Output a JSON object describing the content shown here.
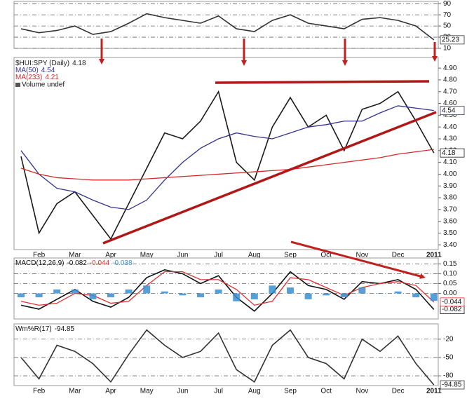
{
  "chart_data": [
    {
      "type": "line",
      "ylim": [
        10,
        94
      ],
      "yticks": [
        90,
        70,
        50,
        30,
        10
      ],
      "grid": true,
      "series": [
        {
          "color": "#333333",
          "right_tag": true,
          "values": [
            45,
            38,
            42,
            50,
            35,
            40,
            55,
            72,
            65,
            60,
            55,
            68,
            45,
            40,
            60,
            70,
            55,
            50,
            45,
            62,
            65,
            60,
            50,
            25.23
          ]
        }
      ]
    },
    {
      "type": "line",
      "grid": false,
      "volume_label": "Volume undef",
      "categories": [
        null,
        "Feb",
        null,
        "Mar",
        null,
        "Apr",
        null,
        "May",
        null,
        "Jun",
        null,
        "Jul",
        null,
        "Aug",
        null,
        "Sep",
        null,
        "Oct",
        null,
        "Nov",
        null,
        "Dec",
        null,
        "2011"
      ],
      "ylim": [
        3.36,
        4.99
      ],
      "yticks": [
        {
          "value": 4.9,
          "label": "4.90"
        },
        {
          "value": 4.8,
          "label": "4.80"
        },
        {
          "value": 4.7,
          "label": "4.70"
        },
        {
          "value": 4.6,
          "label": "4.60"
        },
        {
          "value": 4.5,
          "label": "4.50"
        },
        {
          "value": 4.4,
          "label": "4.40"
        },
        {
          "value": 4.3,
          "label": "4.30"
        },
        {
          "value": 4.2,
          "label": "4.20"
        },
        {
          "value": 4.1,
          "label": "4.10"
        },
        {
          "value": 4.0,
          "label": "4.00"
        },
        {
          "value": 3.9,
          "label": "3.90"
        },
        {
          "value": 3.8,
          "label": "3.80"
        },
        {
          "value": 3.7,
          "label": "3.70"
        },
        {
          "value": 3.6,
          "label": "3.60"
        },
        {
          "value": 3.5,
          "label": "3.50"
        },
        {
          "value": 3.4,
          "label": "3.40"
        }
      ],
      "series": [
        {
          "name": "$HUI:SPY (Daily)",
          "color": "#1a1a1a",
          "right_tag": true,
          "values": [
            4.15,
            3.5,
            3.75,
            3.85,
            3.65,
            3.45,
            3.75,
            4.05,
            4.35,
            4.3,
            4.45,
            4.7,
            4.1,
            3.95,
            4.4,
            4.65,
            4.4,
            4.5,
            4.2,
            4.55,
            4.6,
            4.7,
            4.45,
            4.18
          ]
        },
        {
          "name": "MA(50)",
          "color": "#33338f",
          "right_tag": true,
          "values": [
            4.2,
            4.0,
            3.88,
            3.85,
            3.78,
            3.72,
            3.7,
            3.78,
            3.95,
            4.1,
            4.22,
            4.3,
            4.35,
            4.32,
            4.3,
            4.35,
            4.4,
            4.42,
            4.45,
            4.45,
            4.52,
            4.58,
            4.56,
            4.54
          ]
        },
        {
          "name": "MA(233)",
          "color": "#d42a2a",
          "right_tag": false,
          "values": [
            4.05,
            4.0,
            3.97,
            3.96,
            3.95,
            3.95,
            3.95,
            3.96,
            3.97,
            3.98,
            3.99,
            4.0,
            4.01,
            4.02,
            4.03,
            4.04,
            4.06,
            4.08,
            4.1,
            4.12,
            4.14,
            4.17,
            4.19,
            4.21
          ]
        }
      ]
    },
    {
      "type": "line",
      "title": "MACD(12,26,9)",
      "grid": true,
      "ylim": [
        -0.13,
        0.18
      ],
      "yticks": [
        0.15,
        {
          "value": 0.1,
          "label": "0.10"
        },
        0.05,
        {
          "value": 0,
          "label": "0.00"
        }
      ],
      "series": [
        {
          "color": "#111111",
          "right_tag": true,
          "values": [
            -0.06,
            -0.08,
            -0.03,
            0.02,
            -0.04,
            -0.07,
            -0.02,
            0.08,
            0.12,
            0.1,
            0.05,
            0.09,
            -0.02,
            -0.09,
            0.0,
            0.11,
            0.04,
            0.02,
            -0.03,
            0.06,
            0.05,
            0.07,
            0.02,
            -0.082
          ]
        },
        {
          "color": "#e03030",
          "right_tag": true,
          "values": [
            -0.04,
            -0.06,
            -0.05,
            0.0,
            -0.01,
            -0.05,
            -0.04,
            0.04,
            0.11,
            0.11,
            0.07,
            0.07,
            0.02,
            -0.06,
            -0.04,
            0.08,
            0.07,
            0.03,
            -0.01,
            0.03,
            0.05,
            0.06,
            0.04,
            -0.044
          ]
        },
        {
          "type": "bar",
          "color": "#3a8fd0",
          "right_tag": false,
          "values": [
            -0.02,
            -0.02,
            0.02,
            0.02,
            -0.03,
            -0.02,
            0.02,
            0.04,
            0.01,
            -0.01,
            -0.02,
            0.02,
            -0.04,
            -0.03,
            0.04,
            0.03,
            -0.03,
            -0.01,
            -0.02,
            0.03,
            0.0,
            0.01,
            -0.02,
            -0.038
          ]
        }
      ]
    },
    {
      "type": "line",
      "grid": true,
      "ylim": [
        -96,
        5
      ],
      "yticks": [
        -20,
        -50,
        -80
      ],
      "categories": [
        null,
        "Feb",
        null,
        "Mar",
        null,
        "Apr",
        null,
        "May",
        null,
        "Jun",
        null,
        "Jul",
        null,
        "Aug",
        null,
        "Sep",
        null,
        "Oct",
        null,
        "Nov",
        null,
        "Dec",
        null,
        "2011"
      ],
      "series": [
        {
          "name": "Wm%R(17)",
          "color": "#333333",
          "right_tag": true,
          "values": [
            -50,
            -85,
            -30,
            -40,
            -60,
            -90,
            -45,
            -5,
            -30,
            -50,
            -40,
            -10,
            -70,
            -90,
            -30,
            -5,
            -50,
            -60,
            -85,
            -20,
            -40,
            -15,
            -60,
            -94.85
          ]
        }
      ]
    }
  ]
}
